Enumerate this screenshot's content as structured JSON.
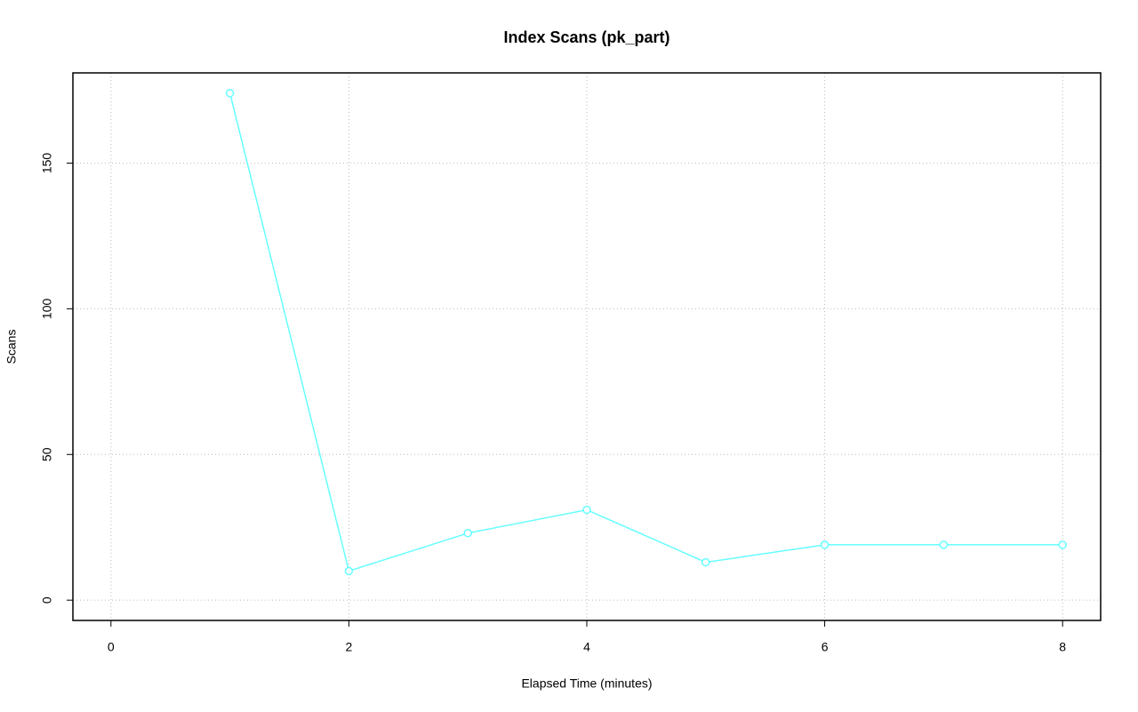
{
  "chart_data": {
    "type": "line",
    "title": "Index Scans (pk_part)",
    "x_label": "Elapsed Time (minutes)",
    "y_label": "Scans",
    "x": [
      1,
      2,
      3,
      4,
      5,
      6,
      7,
      8
    ],
    "series": [
      {
        "color": "#66ffff",
        "values": [
          174,
          10,
          23,
          31,
          13,
          19,
          19,
          19
        ]
      }
    ],
    "xlim": [
      -0.32,
      8.32
    ],
    "xticks": [
      0,
      2,
      4,
      6,
      8
    ],
    "ylim": [
      -6.96,
      180.96
    ],
    "yticks": [
      0,
      50,
      100,
      150
    ],
    "grid": true
  }
}
